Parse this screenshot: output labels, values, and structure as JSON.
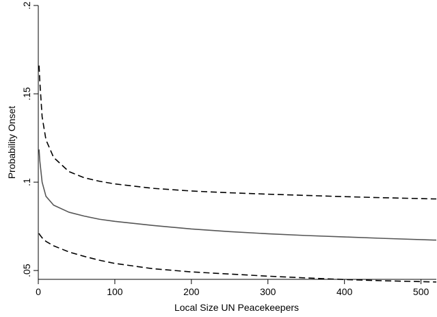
{
  "chart_data": {
    "type": "line",
    "title": "",
    "xlabel": "Local Size UN Peacekeepers",
    "ylabel": "Probability Onset",
    "xlim": [
      0,
      520
    ],
    "ylim": [
      0.045,
      0.2
    ],
    "x_ticks": [
      0,
      100,
      200,
      300,
      400,
      500
    ],
    "x_tick_labels": [
      "0",
      "100",
      "200",
      "300",
      "400",
      "500"
    ],
    "y_ticks": [
      0.05,
      0.1,
      0.15,
      0.2
    ],
    "y_tick_labels": [
      ".05",
      ".1",
      ".15",
      ".2"
    ],
    "grid": false,
    "legend": "none",
    "x": [
      1,
      2,
      5,
      10,
      20,
      40,
      60,
      80,
      100,
      150,
      200,
      250,
      300,
      350,
      400,
      450,
      520
    ],
    "series": [
      {
        "style": "dashed",
        "color": "#000000",
        "values": [
          0.166,
          0.157,
          0.137,
          0.124,
          0.114,
          0.106,
          0.1025,
          0.1005,
          0.099,
          0.0965,
          0.095,
          0.094,
          0.0932,
          0.0925,
          0.0918,
          0.0912,
          0.0905
        ]
      },
      {
        "style": "solid",
        "color": "#555555",
        "values": [
          0.1185,
          0.112,
          0.1,
          0.092,
          0.087,
          0.083,
          0.0808,
          0.079,
          0.0778,
          0.0755,
          0.0735,
          0.072,
          0.0708,
          0.0698,
          0.069,
          0.0682,
          0.0672
        ]
      },
      {
        "style": "dashed",
        "color": "#000000",
        "values": [
          0.071,
          0.0702,
          0.0685,
          0.0665,
          0.064,
          0.0605,
          0.058,
          0.0558,
          0.054,
          0.051,
          0.0492,
          0.048,
          0.0468,
          0.0458,
          0.0449,
          0.0442,
          0.0435
        ]
      }
    ]
  }
}
